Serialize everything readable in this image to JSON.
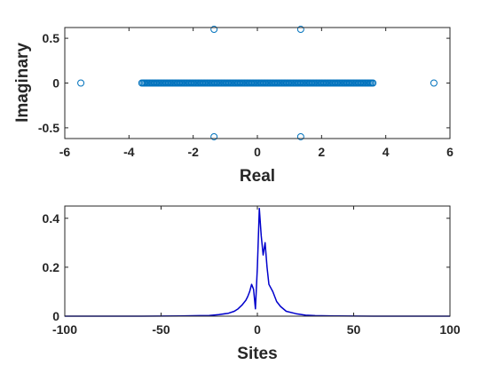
{
  "colors": {
    "marker": "#0072BD",
    "line": "#0000CC",
    "axis": "#262626",
    "background": "#FFFFFF"
  },
  "chart_data": [
    {
      "type": "scatter",
      "title": "",
      "xlabel": "Real",
      "ylabel": "Imaginary",
      "xlim": [
        -6,
        6
      ],
      "ylim": [
        -0.62,
        0.62
      ],
      "xticks": [
        -6,
        -4,
        -2,
        0,
        2,
        4,
        6
      ],
      "yticks": [
        -0.5,
        0,
        0.5
      ],
      "xtick_labels": [
        "-6",
        "-4",
        "-2",
        "0",
        "2",
        "4",
        "6"
      ],
      "ytick_labels": [
        "-0.5",
        "0",
        "0.5"
      ],
      "grid": false,
      "legend": "none",
      "marker": "circle-open",
      "series": [
        {
          "dense_segment": {
            "y": 0,
            "x_from": -3.6,
            "x_to": 3.6
          },
          "points": [
            {
              "x": -5.5,
              "y": 0
            },
            {
              "x": 5.5,
              "y": 0
            },
            {
              "x": -1.35,
              "y": 0.6
            },
            {
              "x": 1.35,
              "y": 0.6
            },
            {
              "x": -1.35,
              "y": -0.6
            },
            {
              "x": 1.35,
              "y": -0.6
            }
          ]
        }
      ]
    },
    {
      "type": "line",
      "title": "",
      "xlabel": "Sites",
      "ylabel": "",
      "xlim": [
        -100,
        100
      ],
      "ylim": [
        0,
        0.45
      ],
      "xticks": [
        -100,
        -50,
        0,
        50,
        100
      ],
      "yticks": [
        0,
        0.2,
        0.4
      ],
      "xtick_labels": [
        "-100",
        "-50",
        "0",
        "50",
        "100"
      ],
      "ytick_labels": [
        "0",
        "0.2",
        "0.4"
      ],
      "grid": false,
      "legend": "none",
      "series": [
        {
          "x": [
            -100,
            -60,
            -40,
            -30,
            -25,
            -20,
            -15,
            -12,
            -10,
            -8,
            -6,
            -5,
            -4,
            -3,
            -2,
            -1,
            0,
            1,
            2,
            3,
            4,
            5,
            6,
            8,
            10,
            12,
            15,
            20,
            25,
            30,
            40,
            60,
            100
          ],
          "y": [
            0,
            0,
            0.001,
            0.002,
            0.003,
            0.006,
            0.012,
            0.02,
            0.03,
            0.045,
            0.065,
            0.08,
            0.1,
            0.13,
            0.11,
            0.03,
            0.2,
            0.44,
            0.33,
            0.25,
            0.3,
            0.2,
            0.13,
            0.1,
            0.06,
            0.04,
            0.02,
            0.01,
            0.004,
            0.002,
            0.001,
            0,
            0
          ]
        }
      ]
    }
  ]
}
